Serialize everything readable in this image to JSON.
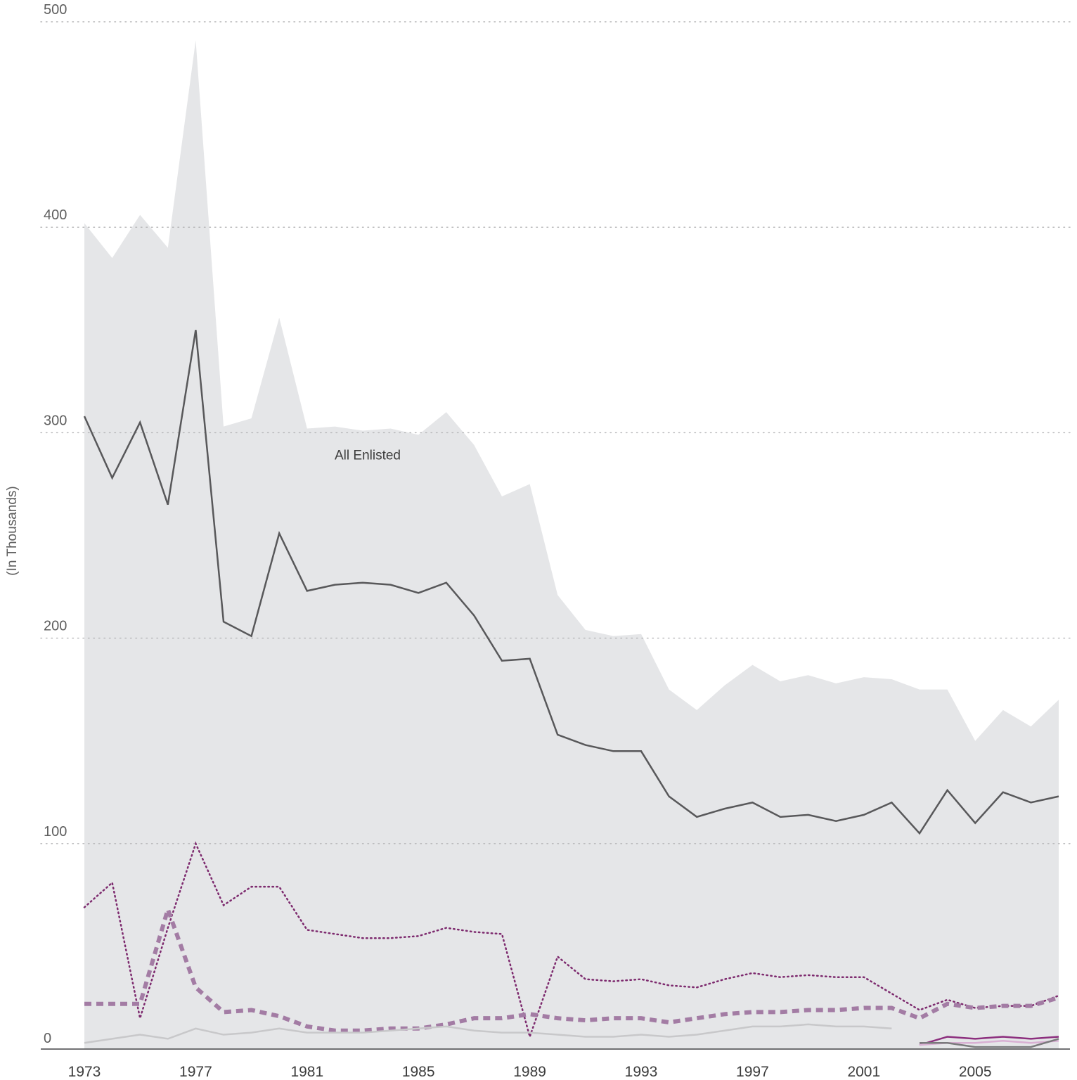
{
  "chart_data": {
    "type": "line",
    "ylabel": "(In Thousands)",
    "xlabel": "",
    "ylim": [
      0,
      500
    ],
    "xlim": [
      1973,
      2008
    ],
    "x_ticks": [
      1973,
      1977,
      1981,
      1985,
      1989,
      1993,
      1997,
      2001,
      2005
    ],
    "y_ticks": [
      0,
      100,
      200,
      300,
      400,
      500
    ],
    "grid": "horizontal dotted",
    "annotations": [
      {
        "text": "All Enlisted",
        "x": 1983,
        "y": 289
      }
    ],
    "area": {
      "x": [
        1973,
        1974,
        1975,
        1976,
        1977,
        1978,
        1979,
        1980,
        1981,
        1982,
        1983,
        1984,
        1985,
        1986,
        1987,
        1988,
        1989,
        1990,
        1991,
        1992,
        1993,
        1994,
        1995,
        1996,
        1997,
        1998,
        1999,
        2000,
        2001,
        2002,
        2003,
        2004,
        2005,
        2006,
        2007,
        2008
      ],
      "values": [
        402,
        385,
        406,
        390,
        491,
        303,
        307,
        356,
        302,
        303,
        301,
        302,
        299,
        310,
        294,
        269,
        275,
        221,
        204,
        201,
        202,
        175,
        165,
        177,
        187,
        179,
        182,
        178,
        181,
        180,
        175,
        175,
        150,
        165,
        157,
        170
      ],
      "color": "#e5e6e8"
    },
    "series": [
      {
        "style": "solid",
        "color": "#58585a",
        "width": 2.5,
        "x": [
          1973,
          1974,
          1975,
          1976,
          1977,
          1978,
          1979,
          1980,
          1981,
          1982,
          1983,
          1984,
          1985,
          1986,
          1987,
          1988,
          1989,
          1990,
          1991,
          1992,
          1993,
          1994,
          1995,
          1996,
          1997,
          1998,
          1999,
          2000,
          2001,
          2002,
          2003,
          2004,
          2005,
          2006,
          2007,
          2008
        ],
        "values": [
          308,
          278,
          305,
          265,
          350,
          208,
          201,
          251,
          223,
          226,
          227,
          226,
          222,
          227,
          211,
          189,
          190,
          153,
          148,
          145,
          145,
          123,
          113,
          117,
          120,
          113,
          114,
          111,
          114,
          120,
          105,
          126,
          110,
          125,
          120,
          123
        ]
      },
      {
        "style": "dotted",
        "color": "#7d2a6e",
        "width": 2.5,
        "x": [
          1973,
          1974,
          1975,
          1976,
          1977,
          1978,
          1979,
          1980,
          1981,
          1982,
          1983,
          1984,
          1985,
          1986,
          1987,
          1988,
          1989,
          1990,
          1991,
          1992,
          1993,
          1994,
          1995,
          1996,
          1997,
          1998,
          1999,
          2000,
          2001,
          2002,
          2003,
          2004,
          2005,
          2006,
          2007,
          2008
        ],
        "values": [
          69,
          81,
          15,
          59,
          100,
          70,
          79,
          79,
          58,
          56,
          54,
          54,
          55,
          59,
          57,
          56,
          6,
          45,
          34,
          33,
          34,
          31,
          30,
          34,
          37,
          35,
          36,
          35,
          35,
          27,
          19,
          24,
          20,
          21,
          21,
          26
        ]
      },
      {
        "style": "dashed",
        "color": "#a37ca4",
        "width": 6,
        "x": [
          1973,
          1974,
          1975,
          1976,
          1977,
          1978,
          1979,
          1980,
          1981,
          1982,
          1983,
          1984,
          1985,
          1986,
          1987,
          1988,
          1989,
          1990,
          1991,
          1992,
          1993,
          1994,
          1995,
          1996,
          1997,
          1998,
          1999,
          2000,
          2001,
          2002,
          2003,
          2004,
          2005,
          2006,
          2007,
          2008
        ],
        "values": [
          22,
          22,
          22,
          68,
          30,
          18,
          19,
          16,
          11,
          9,
          9,
          10,
          10,
          12,
          15,
          15,
          17,
          15,
          14,
          15,
          15,
          13,
          15,
          17,
          18,
          18,
          19,
          19,
          20,
          20,
          15,
          22,
          20,
          21,
          21,
          25
        ]
      },
      {
        "style": "solid",
        "color": "#c8c8ca",
        "width": 2.5,
        "x": [
          1973,
          1974,
          1975,
          1976,
          1977,
          1978,
          1979,
          1980,
          1981,
          1982,
          1983,
          1984,
          1985,
          1986,
          1987,
          1988,
          1989,
          1990,
          1991,
          1992,
          1993,
          1994,
          1995,
          1996,
          1997,
          1998,
          1999,
          2000,
          2001,
          2002
        ],
        "values": [
          3,
          5,
          7,
          5,
          10,
          7,
          8,
          10,
          8,
          8,
          8,
          9,
          10,
          11,
          9,
          8,
          8,
          7,
          6,
          6,
          7,
          6,
          7,
          9,
          11,
          11,
          12,
          11,
          11,
          10
        ]
      },
      {
        "style": "solid",
        "color": "#8c2f7e",
        "width": 2.5,
        "x": [
          2003,
          2004,
          2005,
          2006,
          2007,
          2008
        ],
        "values": [
          2,
          6,
          5,
          6,
          5,
          6
        ]
      },
      {
        "style": "solid",
        "color": "#d8b0d3",
        "width": 2.5,
        "x": [
          2003,
          2004,
          2005,
          2006,
          2007,
          2008
        ],
        "values": [
          2,
          3,
          3,
          4,
          3,
          4
        ]
      },
      {
        "style": "solid",
        "color": "#7a7a7c",
        "width": 2.5,
        "x": [
          2003,
          2004,
          2005,
          2006,
          2007,
          2008
        ],
        "values": [
          3,
          3,
          1,
          1,
          1,
          5
        ]
      }
    ]
  }
}
